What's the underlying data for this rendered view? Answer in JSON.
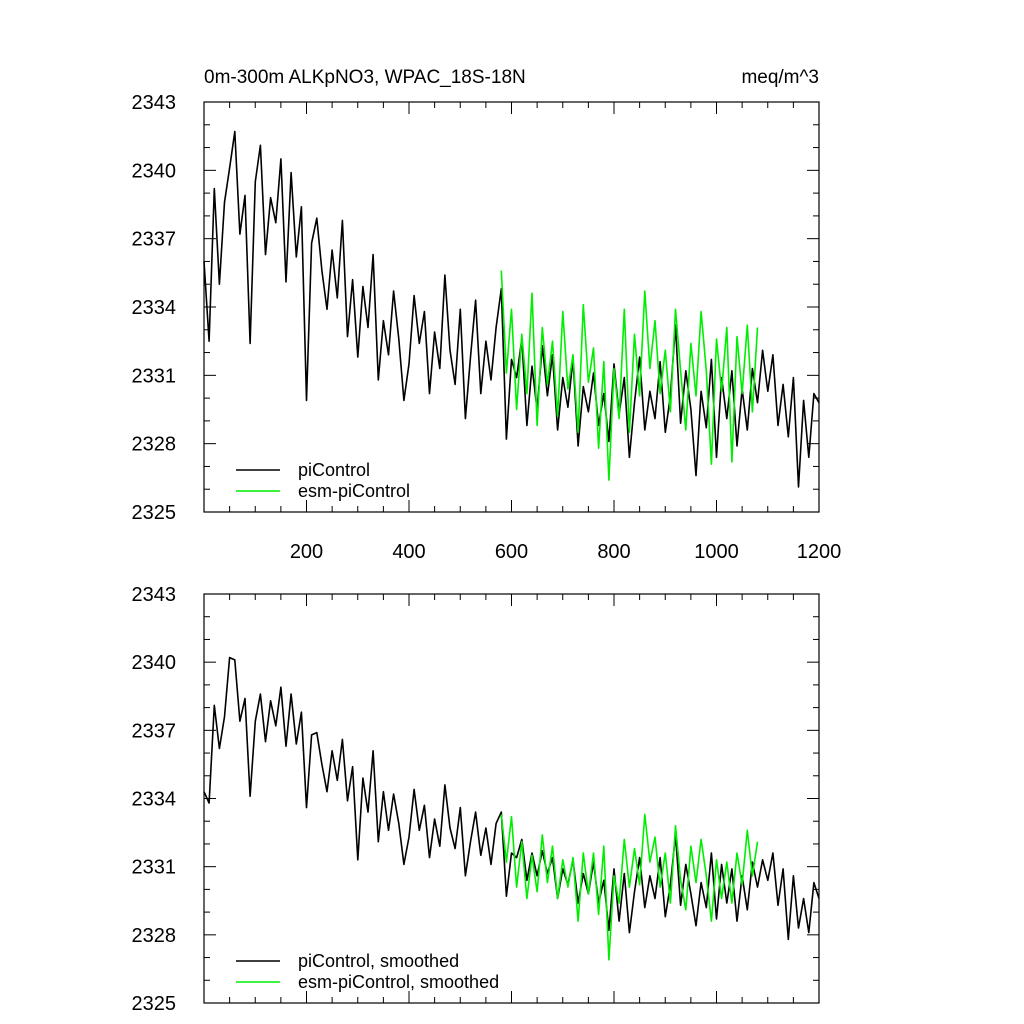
{
  "chart_data": [
    {
      "type": "line",
      "title": "0m-300m ALKpNO3, WPAC_18S-18N",
      "units": "meq/m^3",
      "xlim": [
        0,
        1200
      ],
      "ylim": [
        2325,
        2343
      ],
      "xticks": [
        200,
        400,
        600,
        800,
        1000,
        1200
      ],
      "yticks": [
        2325,
        2328,
        2331,
        2334,
        2337,
        2340,
        2343
      ],
      "legend_location": "bottom-left",
      "series": [
        {
          "name": "piControl",
          "color": "#000000",
          "x": [
            0,
            10,
            20,
            30,
            40,
            50,
            60,
            70,
            80,
            90,
            100,
            110,
            120,
            130,
            140,
            150,
            160,
            170,
            180,
            190,
            200,
            210,
            220,
            230,
            240,
            250,
            260,
            270,
            280,
            290,
            300,
            310,
            320,
            330,
            340,
            350,
            360,
            370,
            380,
            390,
            400,
            410,
            420,
            430,
            440,
            450,
            460,
            470,
            480,
            490,
            500,
            510,
            520,
            530,
            540,
            550,
            560,
            570,
            580,
            590,
            600,
            610,
            620,
            630,
            640,
            650,
            660,
            670,
            680,
            690,
            700,
            710,
            720,
            730,
            740,
            750,
            760,
            770,
            780,
            790,
            800,
            810,
            820,
            830,
            840,
            850,
            860,
            870,
            880,
            890,
            900,
            910,
            920,
            930,
            940,
            950,
            960,
            970,
            980,
            990,
            1000,
            1010,
            1020,
            1030,
            1040,
            1050,
            1060,
            1070,
            1080,
            1090,
            1100,
            1110,
            1120,
            1130,
            1140,
            1150,
            1160,
            1170,
            1180,
            1190,
            1200
          ],
          "values": [
            2336,
            2332.5,
            2339.2,
            2335,
            2338.6,
            2340.1,
            2341.7,
            2337.2,
            2338.9,
            2332.4,
            2339.5,
            2341.1,
            2336.3,
            2338.8,
            2337.7,
            2340.5,
            2335.1,
            2339.9,
            2336.2,
            2338.4,
            2329.9,
            2336.8,
            2337.9,
            2335.6,
            2333.9,
            2336.5,
            2334.4,
            2337.8,
            2332.7,
            2335.2,
            2331.8,
            2334.9,
            2333.1,
            2336.3,
            2330.8,
            2333.4,
            2331.9,
            2334.7,
            2332.6,
            2329.9,
            2331.5,
            2334.5,
            2332.4,
            2333.8,
            2330.2,
            2332.9,
            2331.3,
            2335.4,
            2332.1,
            2330.6,
            2333.9,
            2329.1,
            2331.8,
            2334.3,
            2330.2,
            2332.5,
            2330.8,
            2333.1,
            2334.8,
            2328.2,
            2331.7,
            2330.9,
            2332.6,
            2328.8,
            2331.4,
            2329.5,
            2332.3,
            2330.1,
            2331.9,
            2328.6,
            2330.9,
            2329.6,
            2331.7,
            2327.9,
            2330.5,
            2329.4,
            2331.1,
            2328.8,
            2330.2,
            2328.1,
            2331.5,
            2329.3,
            2330.9,
            2327.4,
            2329.8,
            2331.8,
            2328.6,
            2330.3,
            2329.1,
            2331.6,
            2328.5,
            2330.1,
            2333.2,
            2328.9,
            2331.2,
            2329.5,
            2326.6,
            2330.3,
            2328.7,
            2331.7,
            2327.4,
            2330.9,
            2329.1,
            2331.2,
            2327.9,
            2330.4,
            2328.6,
            2331.3,
            2329.8,
            2332.1,
            2330.3,
            2331.9,
            2328.8,
            2330.6,
            2328.3,
            2330.9,
            2326.1,
            2329.9,
            2327.4,
            2330.2,
            2329.8
          ]
        },
        {
          "name": "esm-piControl",
          "color": "#00ee00",
          "x": [
            580,
            590,
            600,
            610,
            620,
            630,
            640,
            650,
            660,
            670,
            680,
            690,
            700,
            710,
            720,
            730,
            740,
            750,
            760,
            770,
            780,
            790,
            800,
            810,
            820,
            830,
            840,
            850,
            860,
            870,
            880,
            890,
            900,
            910,
            920,
            930,
            940,
            950,
            960,
            970,
            980,
            990,
            1000,
            1010,
            1020,
            1030,
            1040,
            1050,
            1060,
            1070,
            1080
          ],
          "values": [
            2335.6,
            2331.1,
            2333.9,
            2329.5,
            2332.8,
            2330.2,
            2334.6,
            2328.8,
            2333.1,
            2330.6,
            2332.5,
            2329.2,
            2333.8,
            2330.4,
            2331.9,
            2328.5,
            2334.1,
            2330.7,
            2332.2,
            2327.8,
            2331.6,
            2326.4,
            2331.3,
            2329.1,
            2333.9,
            2328.5,
            2332.8,
            2330.1,
            2334.7,
            2331.3,
            2333.4,
            2330.2,
            2332.1,
            2329.4,
            2333.9,
            2331.2,
            2328.6,
            2332.4,
            2330.1,
            2333.8,
            2331.2,
            2327.1,
            2332.6,
            2330.3,
            2333.1,
            2327.2,
            2332.7,
            2330.2,
            2333.2,
            2329.4,
            2333.1
          ]
        }
      ]
    },
    {
      "type": "line",
      "title": "",
      "xlim": [
        0,
        1200
      ],
      "ylim": [
        2325,
        2343
      ],
      "yticks": [
        2325,
        2328,
        2331,
        2334,
        2337,
        2340,
        2343
      ],
      "legend_location": "bottom-left",
      "series": [
        {
          "name": "piControl, smoothed",
          "color": "#000000",
          "x": [
            0,
            10,
            20,
            30,
            40,
            50,
            60,
            70,
            80,
            90,
            100,
            110,
            120,
            130,
            140,
            150,
            160,
            170,
            180,
            190,
            200,
            210,
            220,
            230,
            240,
            250,
            260,
            270,
            280,
            290,
            300,
            310,
            320,
            330,
            340,
            350,
            360,
            370,
            380,
            390,
            400,
            410,
            420,
            430,
            440,
            450,
            460,
            470,
            480,
            490,
            500,
            510,
            520,
            530,
            540,
            550,
            560,
            570,
            580,
            590,
            600,
            610,
            620,
            630,
            640,
            650,
            660,
            670,
            680,
            690,
            700,
            710,
            720,
            730,
            740,
            750,
            760,
            770,
            780,
            790,
            800,
            810,
            820,
            830,
            840,
            850,
            860,
            870,
            880,
            890,
            900,
            910,
            920,
            930,
            940,
            950,
            960,
            970,
            980,
            990,
            1000,
            1010,
            1020,
            1030,
            1040,
            1050,
            1060,
            1070,
            1080,
            1090,
            1100,
            1110,
            1120,
            1130,
            1140,
            1150,
            1160,
            1170,
            1180,
            1190,
            1200
          ],
          "values": [
            2334.3,
            2333.8,
            2338.1,
            2336.2,
            2337.6,
            2340.2,
            2340.1,
            2337.4,
            2338.4,
            2334.1,
            2337.4,
            2338.6,
            2336.5,
            2338.3,
            2337.2,
            2338.9,
            2336.3,
            2338.6,
            2336.4,
            2337.8,
            2333.6,
            2336.8,
            2336.9,
            2335.5,
            2334.3,
            2336.1,
            2334.8,
            2336.6,
            2333.9,
            2335.4,
            2331.3,
            2334.9,
            2333.4,
            2336.1,
            2332.1,
            2334.3,
            2332.6,
            2334.2,
            2332.9,
            2331.1,
            2332.3,
            2334.4,
            2332.6,
            2333.7,
            2331.4,
            2333.1,
            2331.9,
            2334.6,
            2332.7,
            2331.8,
            2333.6,
            2330.6,
            2332.1,
            2333.4,
            2331.5,
            2332.7,
            2331.1,
            2332.9,
            2333.4,
            2329.7,
            2331.6,
            2331.4,
            2332.2,
            2330.4,
            2331.6,
            2330.6,
            2331.7,
            2330.7,
            2331.4,
            2329.6,
            2330.9,
            2330.2,
            2331.3,
            2329.4,
            2330.7,
            2329.8,
            2331.2,
            2329.4,
            2330.4,
            2328.2,
            2330.9,
            2328.6,
            2330.7,
            2328.1,
            2329.9,
            2331.4,
            2329.2,
            2330.6,
            2329.6,
            2331.4,
            2328.8,
            2330.2,
            2332.4,
            2329.3,
            2331.1,
            2329.8,
            2328.4,
            2330.3,
            2329.2,
            2331.6,
            2328.7,
            2331.1,
            2329.4,
            2330.9,
            2328.6,
            2330.6,
            2329.1,
            2331.2,
            2330.1,
            2331.3,
            2330.4,
            2331.6,
            2329.3,
            2330.9,
            2327.8,
            2330.6,
            2328.3,
            2329.6,
            2328.1,
            2330.3,
            2329.6
          ]
        },
        {
          "name": "esm-piControl, smoothed",
          "color": "#00ee00",
          "x": [
            580,
            590,
            600,
            610,
            620,
            630,
            640,
            650,
            660,
            670,
            680,
            690,
            700,
            710,
            720,
            730,
            740,
            750,
            760,
            770,
            780,
            790,
            800,
            810,
            820,
            830,
            840,
            850,
            860,
            870,
            880,
            890,
            900,
            910,
            920,
            930,
            940,
            950,
            960,
            970,
            980,
            990,
            1000,
            1010,
            1020,
            1030,
            1040,
            1050,
            1060,
            1070,
            1080
          ],
          "values": [
            2333.3,
            2331.2,
            2333.2,
            2330.1,
            2332.1,
            2329.6,
            2331.5,
            2329.9,
            2332.4,
            2330.3,
            2331.9,
            2329.6,
            2331.3,
            2330.1,
            2331.4,
            2328.6,
            2331.6,
            2329.8,
            2331.6,
            2328.9,
            2331.9,
            2326.9,
            2330.6,
            2329.4,
            2332.2,
            2330.1,
            2331.8,
            2330.2,
            2333.3,
            2331.2,
            2332.3,
            2330.1,
            2331.6,
            2329.4,
            2332.8,
            2330.4,
            2329.1,
            2331.9,
            2330.3,
            2332.2,
            2330.6,
            2328.6,
            2331.3,
            2329.6,
            2331.2,
            2329.4,
            2331.6,
            2330.2,
            2332.6,
            2330.6,
            2332.1
          ]
        }
      ]
    }
  ]
}
